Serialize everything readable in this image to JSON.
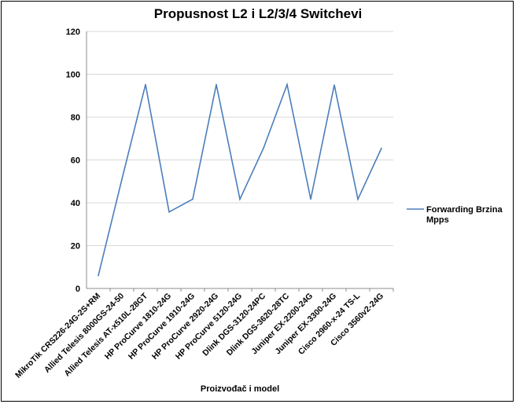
{
  "chart_data": {
    "type": "line",
    "title": "Propusnost L2 i L2/3/4 Switchevi",
    "xlabel": "Proizvođač i model",
    "ylabel": "",
    "ylim": [
      0,
      120
    ],
    "yticks": [
      0,
      20,
      40,
      60,
      80,
      100,
      120
    ],
    "grid": true,
    "legend_position": "right",
    "colors": {
      "series": "#4a7ebb",
      "grid": "#d9d9d9",
      "axis": "#8c8c8c"
    },
    "categories": [
      "MikroTik CRS226-24G-2S+RM",
      "Allied Telesis 8000GS-24-50",
      "Allied Telesis AT-x510L-28GT",
      "HP ProCurve 1810-24G",
      "HP ProCurve 1910-24G",
      "HP ProCurve 2920-24G",
      "HP ProCurve 5120-24G",
      "Dlink DGS-3120-24PC",
      "Dlink DGS-3620-28TC",
      "Juniper EX-2200-24G",
      "Juniper EX-3300-24G",
      "Cisco 2960-x-24 TS-L",
      "Cisco 3560v2-24G"
    ],
    "series": [
      {
        "name": "Forwarding Brzina Mpps",
        "name_lines": [
          "Forwarding Brzina",
          "Mpps"
        ],
        "values": [
          6,
          51,
          95.2,
          35.7,
          41.7,
          95.2,
          41.7,
          65.5,
          95.2,
          41.7,
          95,
          41.7,
          65.5
        ]
      }
    ]
  }
}
